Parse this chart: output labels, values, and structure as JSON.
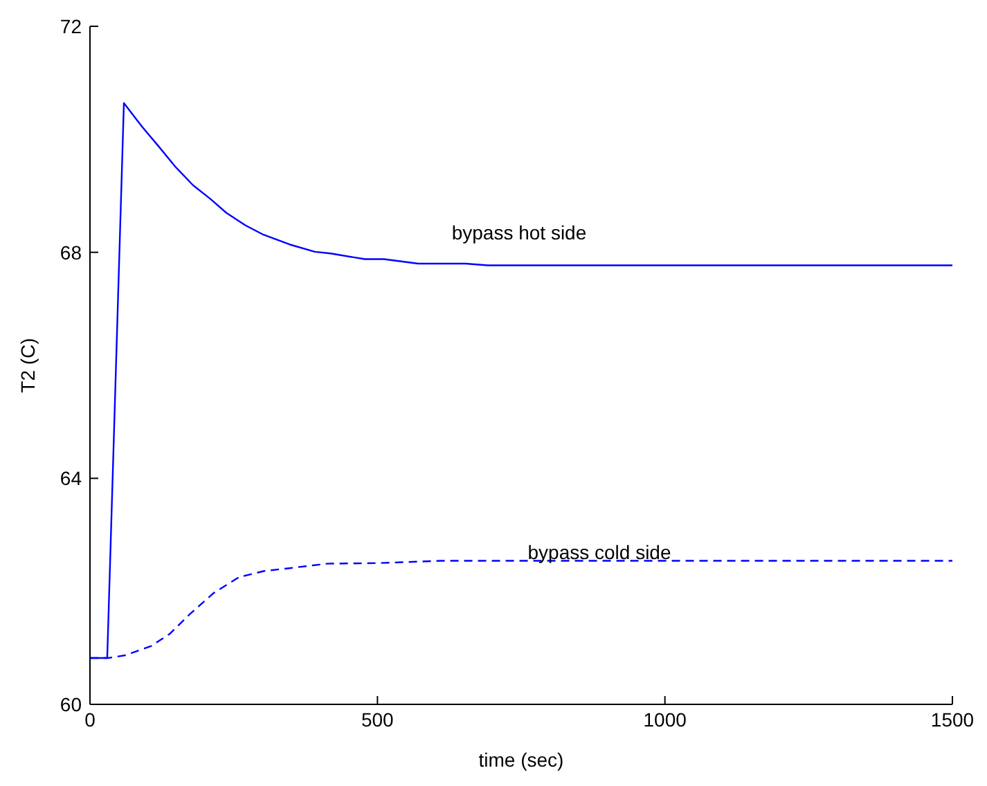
{
  "chart_data": {
    "type": "line",
    "xlabel": "time (sec)",
    "ylabel": "T2 (C)",
    "xlim": [
      0,
      1500
    ],
    "xticks": [
      0,
      500,
      1000,
      1500
    ],
    "ylim": [
      60,
      72
    ],
    "yticks": [
      60,
      64,
      68,
      72
    ],
    "series": [
      {
        "color": "#0000ff",
        "line_style": "solid",
        "x": [
          0,
          30,
          59,
          90,
          119,
          148,
          179,
          210,
          237,
          270,
          300,
          347,
          391,
          418,
          478,
          511,
          571,
          653,
          692,
          1500
        ],
        "values": [
          60.82,
          60.82,
          70.64,
          70.23,
          69.88,
          69.52,
          69.19,
          68.94,
          68.7,
          68.48,
          68.32,
          68.14,
          68.01,
          67.98,
          67.88,
          67.88,
          67.8,
          67.8,
          67.77,
          67.77
        ]
      },
      {
        "color": "#0000ff",
        "line_style": "dashed",
        "x": [
          0,
          32,
          62,
          106,
          139,
          172,
          215,
          259,
          303,
          347,
          413,
          500,
          610,
          1500
        ],
        "values": [
          60.82,
          60.82,
          60.87,
          61.03,
          61.25,
          61.58,
          61.97,
          62.25,
          62.36,
          62.41,
          62.49,
          62.5,
          62.54,
          62.54
        ]
      }
    ],
    "annotations": [
      "bypass hot side",
      "bypass cold side"
    ]
  }
}
